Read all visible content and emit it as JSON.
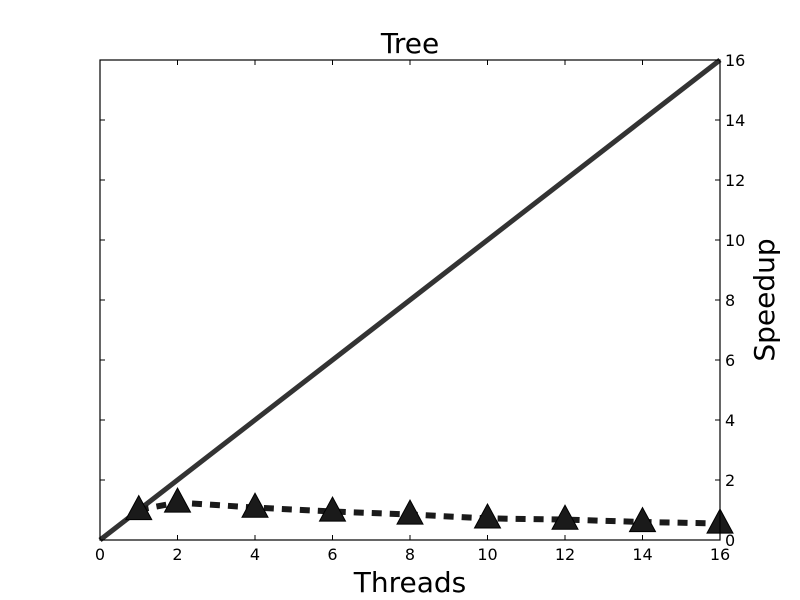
{
  "chart_data": {
    "type": "line",
    "title": "Tree",
    "xlabel": "Threads",
    "ylabel": "Speedup",
    "xlim": [
      0,
      16
    ],
    "ylim": [
      0,
      16
    ],
    "xticks": [
      "0",
      "2",
      "4",
      "6",
      "8",
      "10",
      "12",
      "14",
      "16"
    ],
    "yticks": [
      "0",
      "2",
      "4",
      "6",
      "8",
      "10",
      "12",
      "14",
      "16"
    ],
    "y_axis_position": "right",
    "grid": false,
    "legend": "none",
    "series": [
      {
        "style": "solid",
        "color": "#333333",
        "x": [
          0,
          16
        ],
        "y": [
          0,
          16
        ]
      },
      {
        "style": "dashed",
        "marker": "triangle",
        "color": "#1a1a1a",
        "x": [
          1,
          2,
          4,
          6,
          8,
          10,
          12,
          14,
          16
        ],
        "y": [
          1.0,
          1.25,
          1.08,
          0.95,
          0.85,
          0.72,
          0.68,
          0.6,
          0.55
        ]
      }
    ]
  }
}
